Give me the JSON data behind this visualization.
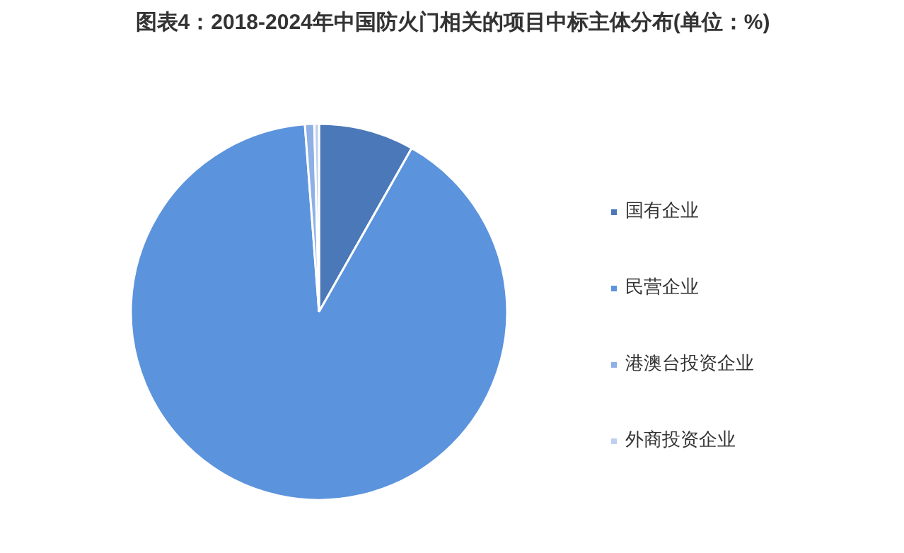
{
  "chart_data": {
    "type": "pie",
    "title": "图表4：2018-2024年中国防火门相关的项目中标主体分布(单位：%)",
    "categories": [
      "国有企业",
      "民营企业",
      "港澳台投资企业",
      "外商投资企业"
    ],
    "values": [
      8.2,
      90.6,
      0.8,
      0.4
    ],
    "colors": [
      "#4a78b8",
      "#5b93dd",
      "#8fb0e6",
      "#bfd0ef"
    ],
    "legend": "right"
  }
}
